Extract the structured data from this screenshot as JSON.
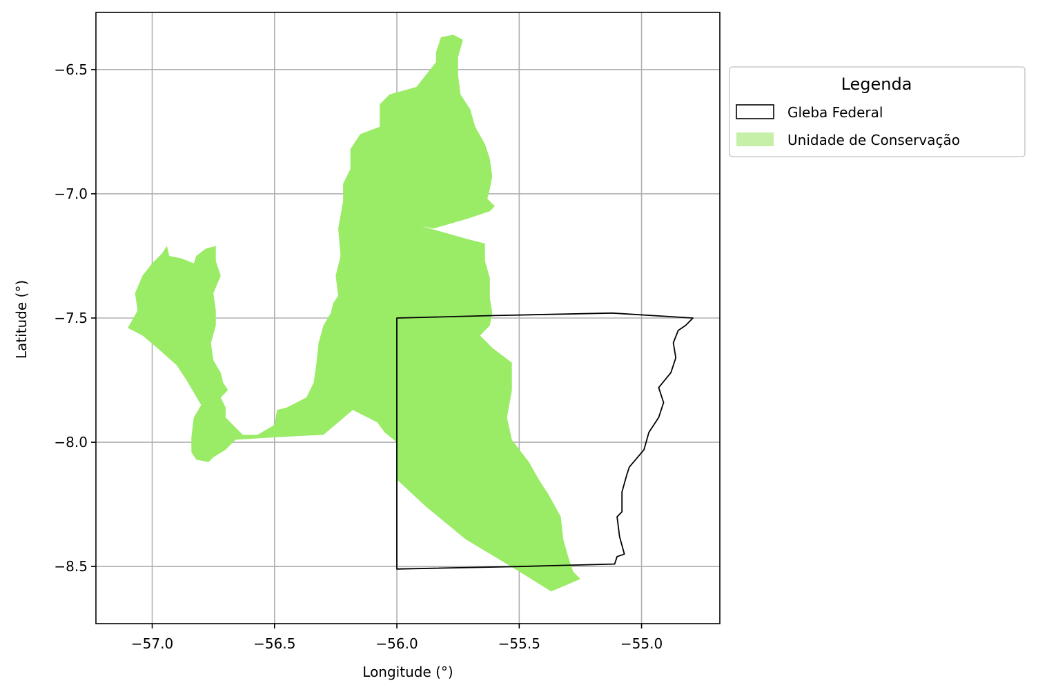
{
  "chart_data": {
    "type": "map",
    "xlabel": "Longitude (°)",
    "ylabel": "Latitude (°)",
    "xlim": [
      -57.23,
      -54.68
    ],
    "ylim": [
      -8.73,
      -6.27
    ],
    "xticks": [
      -57.0,
      -56.5,
      -56.0,
      -55.5,
      -55.0
    ],
    "yticks": [
      -6.5,
      -7.0,
      -7.5,
      -8.0,
      -8.5
    ],
    "xtick_labels": [
      "−57.0",
      "−56.5",
      "−56.0",
      "−55.5",
      "−55.0"
    ],
    "ytick_labels": [
      "−6.5",
      "−7.0",
      "−7.5",
      "−8.0",
      "−8.5"
    ],
    "grid": true,
    "legend": {
      "title": "Legenda",
      "placement": "outside-upper-right",
      "items": [
        {
          "label": "Gleba Federal",
          "style": "outline",
          "color": "#000000"
        },
        {
          "label": "Unidade de Conservação",
          "style": "fill",
          "color": "#9aeb66"
        }
      ]
    },
    "layers": [
      {
        "name": "Unidade de Conservação",
        "color": "#9aeb66",
        "polygons": [
          [
            [
              -57.1,
              -7.54
            ],
            [
              -57.06,
              -7.47
            ],
            [
              -57.07,
              -7.4
            ],
            [
              -57.04,
              -7.33
            ],
            [
              -57.0,
              -7.28
            ],
            [
              -56.96,
              -7.24
            ],
            [
              -56.94,
              -7.21
            ],
            [
              -56.93,
              -7.25
            ],
            [
              -56.88,
              -7.26
            ],
            [
              -56.83,
              -7.28
            ],
            [
              -56.82,
              -7.25
            ],
            [
              -56.78,
              -7.22
            ],
            [
              -56.74,
              -7.21
            ],
            [
              -56.74,
              -7.27
            ],
            [
              -56.72,
              -7.33
            ],
            [
              -56.75,
              -7.4
            ],
            [
              -56.74,
              -7.47
            ],
            [
              -56.74,
              -7.53
            ],
            [
              -56.76,
              -7.6
            ],
            [
              -56.75,
              -7.67
            ],
            [
              -56.72,
              -7.72
            ],
            [
              -56.71,
              -7.76
            ],
            [
              -56.69,
              -7.79
            ],
            [
              -56.72,
              -7.82
            ],
            [
              -56.7,
              -7.86
            ],
            [
              -56.7,
              -7.9
            ],
            [
              -56.67,
              -7.93
            ],
            [
              -56.63,
              -7.97
            ],
            [
              -56.57,
              -7.97
            ],
            [
              -56.5,
              -7.93
            ],
            [
              -56.49,
              -7.87
            ],
            [
              -56.45,
              -7.86
            ],
            [
              -56.37,
              -7.82
            ],
            [
              -56.34,
              -7.76
            ],
            [
              -56.33,
              -7.69
            ],
            [
              -56.32,
              -7.6
            ],
            [
              -56.3,
              -7.53
            ],
            [
              -56.27,
              -7.48
            ],
            [
              -56.26,
              -7.44
            ],
            [
              -56.24,
              -7.41
            ],
            [
              -56.25,
              -7.33
            ],
            [
              -56.23,
              -7.25
            ],
            [
              -56.24,
              -7.14
            ],
            [
              -56.22,
              -7.03
            ],
            [
              -56.22,
              -6.96
            ],
            [
              -56.19,
              -6.9
            ],
            [
              -56.19,
              -6.82
            ],
            [
              -56.15,
              -6.76
            ],
            [
              -56.07,
              -6.73
            ],
            [
              -56.07,
              -6.64
            ],
            [
              -56.03,
              -6.6
            ],
            [
              -55.92,
              -6.57
            ],
            [
              -55.88,
              -6.52
            ],
            [
              -55.84,
              -6.47
            ],
            [
              -55.84,
              -6.43
            ],
            [
              -55.82,
              -6.37
            ],
            [
              -55.77,
              -6.36
            ],
            [
              -55.73,
              -6.38
            ],
            [
              -55.75,
              -6.45
            ],
            [
              -55.75,
              -6.52
            ],
            [
              -55.74,
              -6.6
            ],
            [
              -55.7,
              -6.66
            ],
            [
              -55.68,
              -6.73
            ],
            [
              -55.64,
              -6.8
            ],
            [
              -55.62,
              -6.86
            ],
            [
              -55.61,
              -6.93
            ],
            [
              -55.62,
              -6.98
            ],
            [
              -55.63,
              -7.02
            ],
            [
              -55.6,
              -7.05
            ],
            [
              -55.62,
              -7.07
            ],
            [
              -55.71,
              -7.1
            ],
            [
              -55.85,
              -7.14
            ],
            [
              -55.9,
              -7.13
            ],
            [
              -55.72,
              -7.18
            ],
            [
              -55.64,
              -7.2
            ],
            [
              -55.64,
              -7.27
            ],
            [
              -55.62,
              -7.34
            ],
            [
              -55.62,
              -7.42
            ],
            [
              -55.61,
              -7.48
            ],
            [
              -55.62,
              -7.53
            ],
            [
              -55.66,
              -7.57
            ],
            [
              -55.61,
              -7.62
            ],
            [
              -55.53,
              -7.68
            ],
            [
              -55.53,
              -7.79
            ],
            [
              -55.55,
              -7.9
            ],
            [
              -55.53,
              -7.99
            ],
            [
              -55.46,
              -8.08
            ],
            [
              -55.42,
              -8.15
            ],
            [
              -55.38,
              -8.21
            ],
            [
              -55.33,
              -8.3
            ],
            [
              -55.32,
              -8.39
            ],
            [
              -55.3,
              -8.46
            ],
            [
              -55.28,
              -8.52
            ],
            [
              -55.25,
              -8.55
            ],
            [
              -55.32,
              -8.58
            ],
            [
              -55.37,
              -8.6
            ],
            [
              -55.5,
              -8.52
            ],
            [
              -55.72,
              -8.39
            ],
            [
              -55.88,
              -8.26
            ],
            [
              -56.0,
              -8.15
            ],
            [
              -56.0,
              -8.0
            ],
            [
              -56.05,
              -7.96
            ],
            [
              -56.08,
              -7.92
            ],
            [
              -56.18,
              -7.87
            ],
            [
              -56.24,
              -7.92
            ],
            [
              -56.3,
              -7.97
            ],
            [
              -56.5,
              -7.98
            ],
            [
              -56.66,
              -7.99
            ],
            [
              -56.7,
              -8.03
            ],
            [
              -56.75,
              -8.06
            ],
            [
              -56.77,
              -8.08
            ],
            [
              -56.82,
              -8.07
            ],
            [
              -56.84,
              -8.04
            ],
            [
              -56.84,
              -7.98
            ],
            [
              -56.83,
              -7.9
            ],
            [
              -56.8,
              -7.85
            ],
            [
              -56.86,
              -7.75
            ],
            [
              -56.9,
              -7.69
            ],
            [
              -56.98,
              -7.62
            ],
            [
              -57.04,
              -7.57
            ],
            [
              -57.1,
              -7.54
            ]
          ]
        ]
      },
      {
        "name": "Gleba Federal",
        "color": "#000000",
        "polygons": [
          [
            [
              -56.0,
              -7.5
            ],
            [
              -55.6,
              -7.49
            ],
            [
              -55.12,
              -7.48
            ],
            [
              -54.79,
              -7.5
            ],
            [
              -54.82,
              -7.53
            ],
            [
              -54.85,
              -7.55
            ],
            [
              -54.87,
              -7.6
            ],
            [
              -54.86,
              -7.66
            ],
            [
              -54.88,
              -7.72
            ],
            [
              -54.93,
              -7.78
            ],
            [
              -54.91,
              -7.84
            ],
            [
              -54.93,
              -7.9
            ],
            [
              -54.97,
              -7.96
            ],
            [
              -54.99,
              -8.03
            ],
            [
              -55.05,
              -8.1
            ],
            [
              -55.06,
              -8.13
            ],
            [
              -55.08,
              -8.2
            ],
            [
              -55.08,
              -8.28
            ],
            [
              -55.1,
              -8.3
            ],
            [
              -55.09,
              -8.38
            ],
            [
              -55.07,
              -8.45
            ],
            [
              -55.1,
              -8.46
            ],
            [
              -55.11,
              -8.49
            ],
            [
              -55.5,
              -8.5
            ],
            [
              -56.0,
              -8.51
            ],
            [
              -56.0,
              -7.5
            ]
          ]
        ]
      }
    ]
  }
}
